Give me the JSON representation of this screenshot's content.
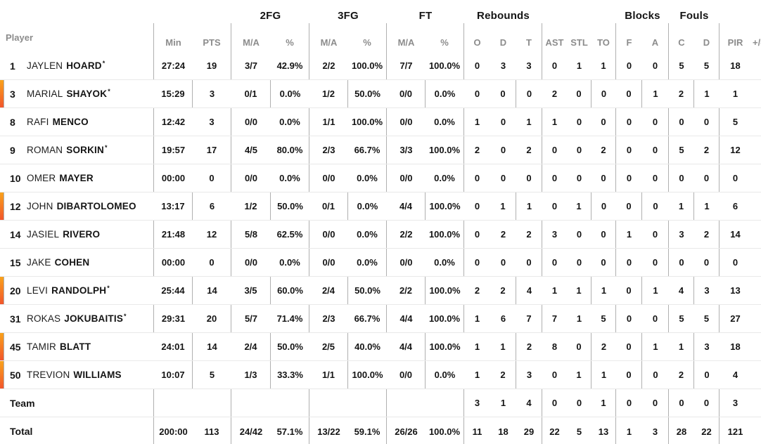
{
  "colors": {
    "on_court_gradient_top": "#f9a21b",
    "on_court_gradient_bottom": "#f1552c",
    "header_text_gray": "#8c8c8c",
    "divider_gray": "#b0b0b0",
    "row_separator": "#e9e9e9",
    "text_black": "#141414"
  },
  "table": {
    "player_header": "Player",
    "starter_mark": "*",
    "groups": [
      {
        "id": "2fg",
        "label": "2FG"
      },
      {
        "id": "3fg",
        "label": "3FG"
      },
      {
        "id": "ft",
        "label": "FT"
      },
      {
        "id": "rebounds",
        "label": "Rebounds"
      },
      {
        "id": "blocks",
        "label": "Blocks"
      },
      {
        "id": "fouls",
        "label": "Fouls"
      }
    ],
    "stat_headers": [
      "Min",
      "PTS",
      "M/A",
      "%",
      "M/A",
      "%",
      "M/A",
      "%",
      "O",
      "D",
      "T",
      "AST",
      "STL",
      "TO",
      "F",
      "A",
      "C",
      "D",
      "PIR",
      "+/-"
    ],
    "stat_keys": [
      "min",
      "pts",
      "2fg-ma",
      "2fg-pct",
      "3fg-ma",
      "3fg-pct",
      "ft-ma",
      "ft-pct",
      "reb-o",
      "reb-d",
      "reb-t",
      "ast",
      "stl",
      "to",
      "blk-f",
      "blk-a",
      "foul-c",
      "foul-d",
      "pir",
      "plusminus"
    ],
    "rows": [
      {
        "number": "1",
        "first": "JAYLEN",
        "last": "HOARD",
        "starter": true,
        "on_court": false,
        "stats": [
          "27:24",
          "19",
          "3/7",
          "42.9%",
          "2/2",
          "100.0%",
          "7/7",
          "100.0%",
          "0",
          "3",
          "3",
          "0",
          "1",
          "1",
          "0",
          "0",
          "5",
          "5",
          "18",
          ""
        ]
      },
      {
        "number": "3",
        "first": "MARIAL",
        "last": "SHAYOK",
        "starter": true,
        "on_court": true,
        "stats": [
          "15:29",
          "3",
          "0/1",
          "0.0%",
          "1/2",
          "50.0%",
          "0/0",
          "0.0%",
          "0",
          "0",
          "0",
          "2",
          "0",
          "0",
          "0",
          "1",
          "2",
          "1",
          "1",
          ""
        ]
      },
      {
        "number": "8",
        "first": "RAFI",
        "last": "MENCO",
        "starter": false,
        "on_court": false,
        "stats": [
          "12:42",
          "3",
          "0/0",
          "0.0%",
          "1/1",
          "100.0%",
          "0/0",
          "0.0%",
          "1",
          "0",
          "1",
          "1",
          "0",
          "0",
          "0",
          "0",
          "0",
          "0",
          "5",
          ""
        ]
      },
      {
        "number": "9",
        "first": "ROMAN",
        "last": "SORKIN",
        "starter": true,
        "on_court": false,
        "stats": [
          "19:57",
          "17",
          "4/5",
          "80.0%",
          "2/3",
          "66.7%",
          "3/3",
          "100.0%",
          "2",
          "0",
          "2",
          "0",
          "0",
          "2",
          "0",
          "0",
          "5",
          "2",
          "12",
          ""
        ]
      },
      {
        "number": "10",
        "first": "OMER",
        "last": "MAYER",
        "starter": false,
        "on_court": false,
        "stats": [
          "00:00",
          "0",
          "0/0",
          "0.0%",
          "0/0",
          "0.0%",
          "0/0",
          "0.0%",
          "0",
          "0",
          "0",
          "0",
          "0",
          "0",
          "0",
          "0",
          "0",
          "0",
          "0",
          ""
        ]
      },
      {
        "number": "12",
        "first": "JOHN",
        "last": "DIBARTOLOMEO",
        "starter": false,
        "on_court": true,
        "stats": [
          "13:17",
          "6",
          "1/2",
          "50.0%",
          "0/1",
          "0.0%",
          "4/4",
          "100.0%",
          "0",
          "1",
          "1",
          "0",
          "1",
          "0",
          "0",
          "0",
          "1",
          "1",
          "6",
          ""
        ]
      },
      {
        "number": "14",
        "first": "JASIEL",
        "last": "RIVERO",
        "starter": false,
        "on_court": false,
        "stats": [
          "21:48",
          "12",
          "5/8",
          "62.5%",
          "0/0",
          "0.0%",
          "2/2",
          "100.0%",
          "0",
          "2",
          "2",
          "3",
          "0",
          "0",
          "1",
          "0",
          "3",
          "2",
          "14",
          ""
        ]
      },
      {
        "number": "15",
        "first": "JAKE",
        "last": "COHEN",
        "starter": false,
        "on_court": false,
        "stats": [
          "00:00",
          "0",
          "0/0",
          "0.0%",
          "0/0",
          "0.0%",
          "0/0",
          "0.0%",
          "0",
          "0",
          "0",
          "0",
          "0",
          "0",
          "0",
          "0",
          "0",
          "0",
          "0",
          ""
        ]
      },
      {
        "number": "20",
        "first": "LEVI",
        "last": "RANDOLPH",
        "starter": true,
        "on_court": true,
        "stats": [
          "25:44",
          "14",
          "3/5",
          "60.0%",
          "2/4",
          "50.0%",
          "2/2",
          "100.0%",
          "2",
          "2",
          "4",
          "1",
          "1",
          "1",
          "0",
          "1",
          "4",
          "3",
          "13",
          ""
        ]
      },
      {
        "number": "31",
        "first": "ROKAS",
        "last": "JOKUBAITIS",
        "starter": true,
        "on_court": false,
        "stats": [
          "29:31",
          "20",
          "5/7",
          "71.4%",
          "2/3",
          "66.7%",
          "4/4",
          "100.0%",
          "1",
          "6",
          "7",
          "7",
          "1",
          "5",
          "0",
          "0",
          "5",
          "5",
          "27",
          ""
        ]
      },
      {
        "number": "45",
        "first": "TAMIR",
        "last": "BLATT",
        "starter": false,
        "on_court": true,
        "stats": [
          "24:01",
          "14",
          "2/4",
          "50.0%",
          "2/5",
          "40.0%",
          "4/4",
          "100.0%",
          "1",
          "1",
          "2",
          "8",
          "0",
          "2",
          "0",
          "1",
          "1",
          "3",
          "18",
          ""
        ]
      },
      {
        "number": "50",
        "first": "TREVION",
        "last": "WILLIAMS",
        "starter": false,
        "on_court": true,
        "stats": [
          "10:07",
          "5",
          "1/3",
          "33.3%",
          "1/1",
          "100.0%",
          "0/0",
          "0.0%",
          "1",
          "2",
          "3",
          "0",
          "1",
          "1",
          "0",
          "0",
          "2",
          "0",
          "4",
          ""
        ]
      },
      {
        "label": "Team",
        "stats": [
          "",
          "",
          "",
          "",
          "",
          "",
          "",
          "",
          "3",
          "1",
          "4",
          "0",
          "0",
          "1",
          "0",
          "0",
          "0",
          "0",
          "3",
          ""
        ]
      },
      {
        "label": "Total",
        "stats": [
          "200:00",
          "113",
          "24/42",
          "57.1%",
          "13/22",
          "59.1%",
          "26/26",
          "100.0%",
          "11",
          "18",
          "29",
          "22",
          "5",
          "13",
          "1",
          "3",
          "28",
          "22",
          "121",
          ""
        ]
      }
    ]
  }
}
